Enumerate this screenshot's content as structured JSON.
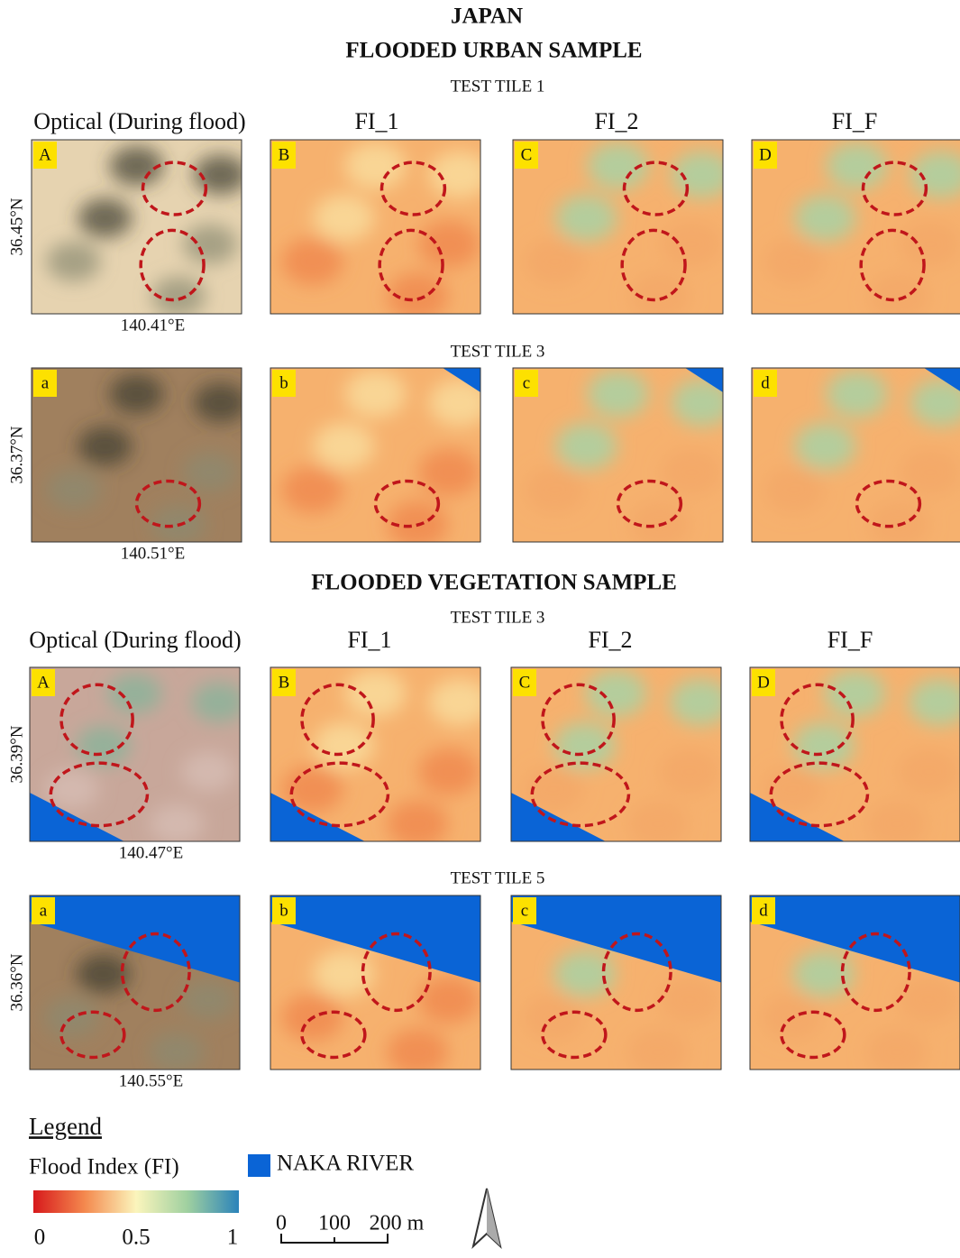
{
  "title": "JAPAN",
  "sections": [
    {
      "heading": "FLOODED URBAN SAMPLE",
      "column_headers": [
        "Optical (During flood)",
        "FI_1",
        "FI_2",
        "FI_F"
      ],
      "rows": [
        {
          "tile": "TEST TILE 1",
          "latitude": "36.45°N",
          "longitude": "140.41°E",
          "panel_labels": [
            "A",
            "B",
            "C",
            "D"
          ]
        },
        {
          "tile": "TEST TILE 3",
          "latitude": "36.37°N",
          "longitude": "140.51°E",
          "panel_labels": [
            "a",
            "b",
            "c",
            "d"
          ]
        }
      ]
    },
    {
      "heading": "FLOODED VEGETATION SAMPLE",
      "column_headers": [
        "Optical (During flood)",
        "FI_1",
        "FI_2",
        "FI_F"
      ],
      "rows": [
        {
          "tile": "TEST TILE 3",
          "latitude": "36.39°N",
          "longitude": "140.47°E",
          "panel_labels": [
            "A",
            "B",
            "C",
            "D"
          ]
        },
        {
          "tile": "TEST TILE 5",
          "latitude": "36.36°N",
          "longitude": "140.55°E",
          "panel_labels": [
            "a",
            "b",
            "c",
            "d"
          ]
        }
      ]
    }
  ],
  "legend": {
    "title": "Legend",
    "colorbar_title": "Flood Index (FI)",
    "colorbar_ticks": [
      0,
      0.5,
      1
    ],
    "river_label": "NAKA RIVER",
    "scale_bar_labels": [
      "0",
      "100",
      "200 m"
    ]
  }
}
